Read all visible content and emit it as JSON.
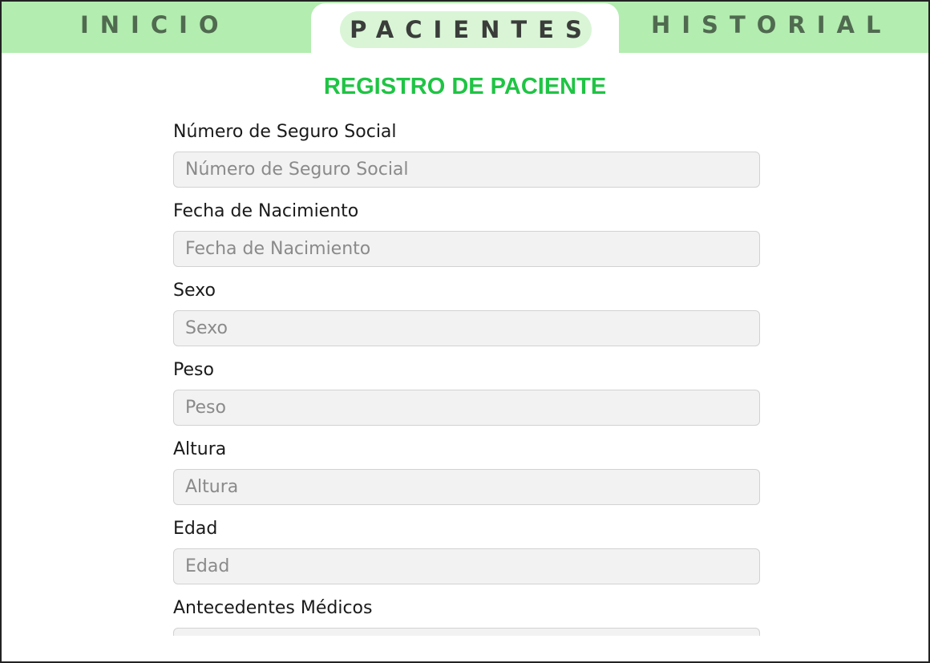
{
  "nav": {
    "tabs": [
      {
        "label": "INICIO"
      },
      {
        "label": "PACIENTES",
        "active": true
      },
      {
        "label": "HISTORIAL"
      }
    ]
  },
  "form": {
    "title": "REGISTRO DE PACIENTE",
    "fields": [
      {
        "label": "Número de Seguro Social",
        "placeholder": "Número de Seguro Social",
        "value": ""
      },
      {
        "label": "Fecha de Nacimiento",
        "placeholder": "Fecha de Nacimiento",
        "value": ""
      },
      {
        "label": "Sexo",
        "placeholder": "Sexo",
        "value": ""
      },
      {
        "label": "Peso",
        "placeholder": "Peso",
        "value": ""
      },
      {
        "label": "Altura",
        "placeholder": "Altura",
        "value": ""
      },
      {
        "label": "Edad",
        "placeholder": "Edad",
        "value": ""
      },
      {
        "label": "Antecedentes Médicos",
        "placeholder": "",
        "value": ""
      }
    ]
  },
  "colors": {
    "nav_background": "#b3edb0",
    "active_tab_pill": "#d9f5d6",
    "title_green": "#1fc444",
    "input_background": "#f2f2f2"
  }
}
